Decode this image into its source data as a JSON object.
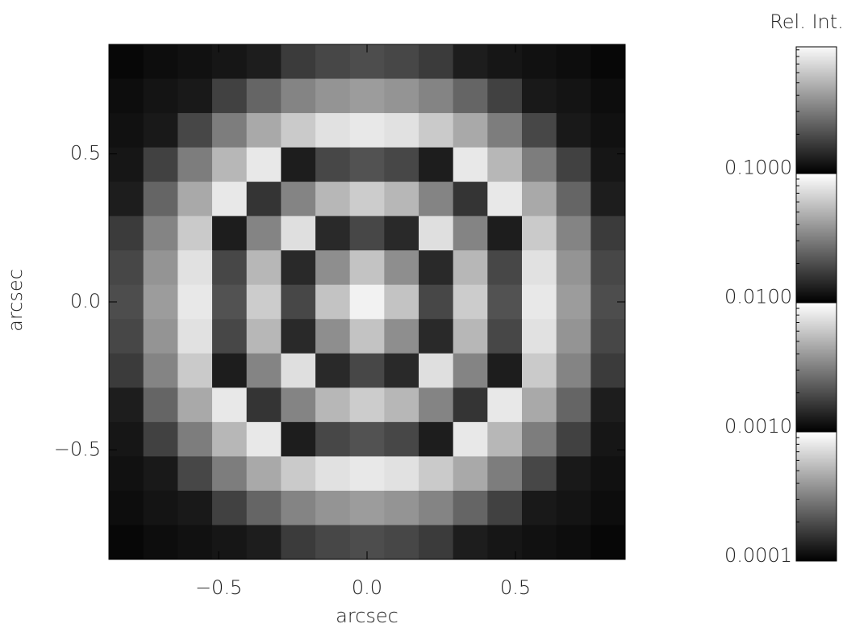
{
  "chart_data": {
    "type": "heatmap",
    "xlabel": "arcsec",
    "ylabel": "arcsec",
    "xlim": [
      -0.87,
      0.87
    ],
    "ylim": [
      -0.87,
      0.87
    ],
    "xticks": [
      {
        "value": -0.5,
        "label": "−0.5"
      },
      {
        "value": 0,
        "label": "0.0"
      },
      0.5
    ],
    "yticks": [
      {
        "value": -0.5,
        "label": "−0.5"
      },
      {
        "value": 0,
        "label": "0.0"
      },
      0.5
    ],
    "colorbar": {
      "title": "Rel. Int.",
      "log": true,
      "zlim": [
        0.0001,
        0.95
      ],
      "ticks": [
        {
          "value": 0.0001,
          "label": "0.0001"
        },
        {
          "value": 0.001,
          "label": "0.0010"
        },
        {
          "value": 0.01,
          "label": "0.0100"
        },
        {
          "value": 0.1,
          "label": "0.1000"
        }
      ]
    },
    "z": [
      [
        0.000107,
        0.000112,
        0.000117,
        0.000122,
        0.00013,
        0.00017,
        0.00019,
        0.0002,
        0.00019,
        0.00017,
        0.00013,
        0.000122,
        0.000117,
        0.000112,
        0.000107
      ],
      [
        0.000112,
        0.00012,
        0.000125,
        0.00018,
        0.00025,
        0.00033,
        0.00038,
        0.00041,
        0.00038,
        0.00033,
        0.00025,
        0.00018,
        0.000125,
        0.00012,
        0.000112
      ],
      [
        0.000117,
        0.000125,
        0.00019,
        0.00031,
        0.00046,
        0.00062,
        0.00076,
        0.00081,
        0.00076,
        0.00062,
        0.00046,
        0.00031,
        0.00019,
        0.000125,
        0.000117
      ],
      [
        0.000122,
        0.00018,
        0.00031,
        0.00052,
        0.00081,
        0.0013,
        0.0019,
        0.0021,
        0.0019,
        0.0013,
        0.00081,
        0.00052,
        0.00031,
        0.00018,
        0.000122
      ],
      [
        0.00013,
        0.00025,
        0.00046,
        0.00081,
        0.0016,
        0.0033,
        0.0052,
        0.0063,
        0.0052,
        0.0033,
        0.0016,
        0.00081,
        0.00046,
        0.00025,
        0.00013
      ],
      [
        0.00017,
        0.00033,
        0.00062,
        0.0013,
        0.0033,
        0.0075,
        0.0145,
        0.019,
        0.0145,
        0.0075,
        0.0033,
        0.0013,
        0.00062,
        0.00033,
        0.00017
      ],
      [
        0.00019,
        0.00038,
        0.00076,
        0.0019,
        0.0052,
        0.0145,
        0.036,
        0.058,
        0.036,
        0.0145,
        0.0052,
        0.0019,
        0.00076,
        0.00038,
        0.00019
      ],
      [
        0.0002,
        0.00041,
        0.00081,
        0.0021,
        0.0063,
        0.019,
        0.058,
        0.89,
        0.058,
        0.019,
        0.0063,
        0.0021,
        0.00081,
        0.00041,
        0.0002
      ],
      [
        0.00019,
        0.00038,
        0.00076,
        0.0019,
        0.0052,
        0.0145,
        0.036,
        0.058,
        0.036,
        0.0145,
        0.0052,
        0.0019,
        0.00076,
        0.00038,
        0.00019
      ],
      [
        0.00017,
        0.00033,
        0.00062,
        0.0013,
        0.0033,
        0.0075,
        0.0145,
        0.019,
        0.0145,
        0.0075,
        0.0033,
        0.0013,
        0.00062,
        0.00033,
        0.00017
      ],
      [
        0.00013,
        0.00025,
        0.00046,
        0.00081,
        0.0016,
        0.0033,
        0.0052,
        0.0063,
        0.0052,
        0.0033,
        0.0016,
        0.00081,
        0.00046,
        0.00025,
        0.00013
      ],
      [
        0.000122,
        0.00018,
        0.00031,
        0.00052,
        0.00081,
        0.0013,
        0.0019,
        0.0021,
        0.0019,
        0.0013,
        0.00081,
        0.00052,
        0.00031,
        0.00018,
        0.000122
      ],
      [
        0.000117,
        0.000125,
        0.00019,
        0.00031,
        0.00046,
        0.00062,
        0.00076,
        0.00081,
        0.00076,
        0.00062,
        0.00046,
        0.00031,
        0.00019,
        0.000125,
        0.000117
      ],
      [
        0.000112,
        0.00012,
        0.000125,
        0.00018,
        0.00025,
        0.00033,
        0.00038,
        0.00041,
        0.00038,
        0.00033,
        0.00025,
        0.00018,
        0.000125,
        0.00012,
        0.000112
      ],
      [
        0.000107,
        0.000112,
        0.000117,
        0.000122,
        0.00013,
        0.00017,
        0.00019,
        0.0002,
        0.00019,
        0.00017,
        0.00013,
        0.000122,
        0.000117,
        0.000112,
        0.000107
      ]
    ]
  }
}
